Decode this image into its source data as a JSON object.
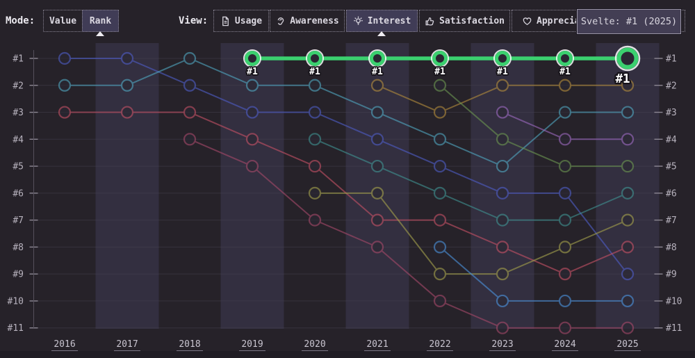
{
  "toolbar": {
    "mode_label": "Mode:",
    "mode_options": [
      {
        "label": "Value",
        "selected": false
      },
      {
        "label": "Rank",
        "selected": true
      }
    ],
    "view_label": "View:",
    "view_options": [
      {
        "label": "Usage",
        "icon": "document-icon",
        "selected": false
      },
      {
        "label": "Awareness",
        "icon": "ear-icon",
        "selected": false
      },
      {
        "label": "Interest",
        "icon": "lightbulb-icon",
        "selected": true
      },
      {
        "label": "Satisfaction",
        "icon": "thumbs-up-icon",
        "selected": false
      },
      {
        "label": "Appreciation",
        "icon": "heart-icon",
        "selected": false
      }
    ]
  },
  "tooltip": {
    "text": "Svelte: #1 (2025)"
  },
  "chart_data": {
    "type": "line",
    "subtype": "bump-rank-chart",
    "title": "",
    "x": [
      2016,
      2017,
      2018,
      2019,
      2020,
      2021,
      2022,
      2023,
      2024,
      2025
    ],
    "y_rank_labels": [
      "#1",
      "#2",
      "#3",
      "#4",
      "#5",
      "#6",
      "#7",
      "#8",
      "#9",
      "#10",
      "#11"
    ],
    "ylim": [
      1,
      11
    ],
    "grid": true,
    "band_years": [
      2017,
      2019,
      2021,
      2023,
      2025
    ],
    "series": [
      {
        "name": "series-indigo",
        "color": "#4e5cc4",
        "highlight": false,
        "ranks": [
          1,
          1,
          2,
          3,
          3,
          4,
          5,
          6,
          6,
          9
        ]
      },
      {
        "name": "series-teal",
        "color": "#4fa3bd",
        "highlight": false,
        "ranks": [
          2,
          2,
          1,
          2,
          2,
          3,
          4,
          5,
          3,
          3
        ]
      },
      {
        "name": "series-crimson",
        "color": "#c25064",
        "highlight": false,
        "ranks": [
          3,
          3,
          3,
          4,
          5,
          7,
          7,
          8,
          9,
          8
        ]
      },
      {
        "name": "series-rose",
        "color": "#a34868",
        "highlight": false,
        "ranks": [
          null,
          null,
          4,
          5,
          7,
          8,
          10,
          11,
          11,
          11
        ]
      },
      {
        "name": "series-dark-teal",
        "color": "#3f9190",
        "highlight": false,
        "ranks": [
          null,
          null,
          null,
          null,
          4,
          5,
          6,
          7,
          7,
          6
        ]
      },
      {
        "name": "series-olive",
        "color": "#a19e4b",
        "highlight": false,
        "ranks": [
          null,
          null,
          null,
          null,
          6,
          6,
          9,
          9,
          8,
          7
        ]
      },
      {
        "name": "series-amber",
        "color": "#b08a3c",
        "highlight": false,
        "ranks": [
          null,
          null,
          null,
          null,
          null,
          2,
          3,
          2,
          2,
          2
        ]
      },
      {
        "name": "series-green",
        "color": "#6a9450",
        "highlight": false,
        "ranks": [
          null,
          null,
          null,
          null,
          null,
          null,
          2,
          4,
          5,
          5
        ]
      },
      {
        "name": "series-blue",
        "color": "#4a90d9",
        "highlight": false,
        "ranks": [
          null,
          null,
          null,
          null,
          null,
          null,
          8,
          10,
          10,
          10
        ]
      },
      {
        "name": "series-purple",
        "color": "#9a68bd",
        "highlight": false,
        "ranks": [
          null,
          null,
          null,
          null,
          null,
          null,
          null,
          3,
          4,
          4
        ]
      },
      {
        "name": "Svelte",
        "color": "#3bd06f",
        "highlight": true,
        "ranks": [
          null,
          null,
          null,
          1,
          1,
          1,
          1,
          1,
          1,
          1
        ]
      }
    ],
    "annotations": [
      {
        "year": 2019,
        "text": "#1",
        "emphasis": false
      },
      {
        "year": 2020,
        "text": "#1",
        "emphasis": false
      },
      {
        "year": 2021,
        "text": "#1",
        "emphasis": false
      },
      {
        "year": 2022,
        "text": "#1",
        "emphasis": false
      },
      {
        "year": 2023,
        "text": "#1",
        "emphasis": false
      },
      {
        "year": 2024,
        "text": "#1",
        "emphasis": false
      },
      {
        "year": 2025,
        "text": "#1",
        "emphasis": true
      }
    ],
    "colors": {
      "background": "#262229",
      "band": "#332f40",
      "grid": "#474352",
      "axis": "#55505c",
      "tick": "#8d8894",
      "label": "#b7b2bd",
      "year": "#c9c5d0",
      "year_underline": "#7c7786",
      "marker_fill": "#2a2733",
      "footer": "#201d24",
      "annotation_text": "#ffffff",
      "annotation_outline": "#17141a"
    }
  }
}
